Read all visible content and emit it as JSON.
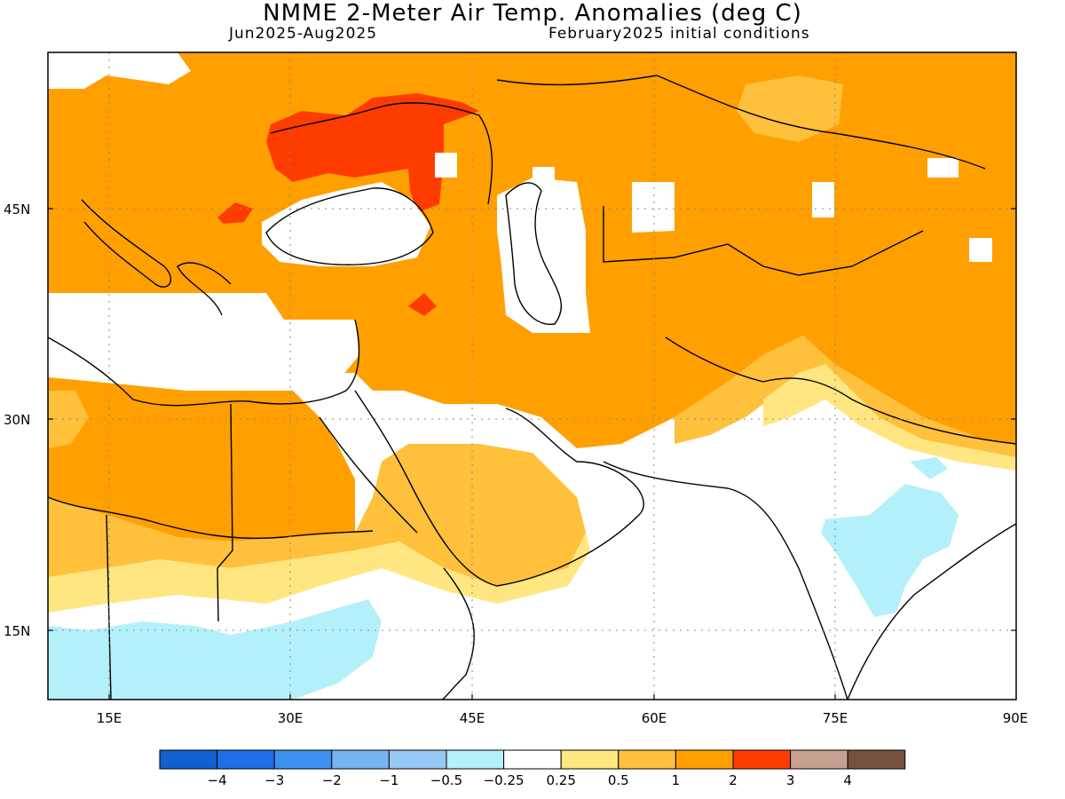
{
  "title": "NMME 2-Meter Air Temp. Anomalies (deg C)",
  "period": "Jun2025-Aug2025",
  "initial_conditions": "February2025 initial conditions",
  "lat_labels": [
    "45N",
    "30N",
    "15N"
  ],
  "lon_labels": [
    "15E",
    "30E",
    "45E",
    "60E",
    "75E",
    "90E"
  ],
  "legend": {
    "colors": [
      "#1060d0",
      "#1e6ee8",
      "#3c91f0",
      "#78b4f0",
      "#96c8f5",
      "#b4f0fa",
      "#ffffff",
      "#ffe680",
      "#ffc03c",
      "#ffa000",
      "#ff3c00",
      "#c8a090",
      "#785040"
    ],
    "labels": [
      "-4",
      "-3",
      "-2",
      "-1",
      "-0.5",
      "-0.25",
      "0.25",
      "0.5",
      "1",
      "2",
      "3",
      "4"
    ]
  }
}
